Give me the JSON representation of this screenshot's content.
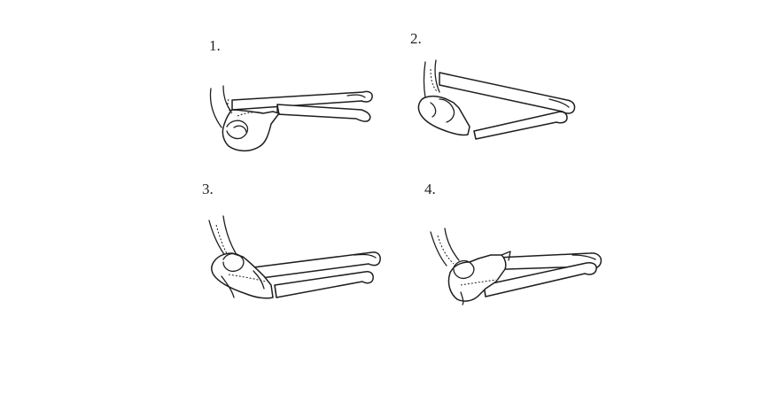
{
  "figure": {
    "panels": [
      {
        "label": "1."
      },
      {
        "label": "2."
      },
      {
        "label": "3."
      },
      {
        "label": "4."
      }
    ]
  }
}
